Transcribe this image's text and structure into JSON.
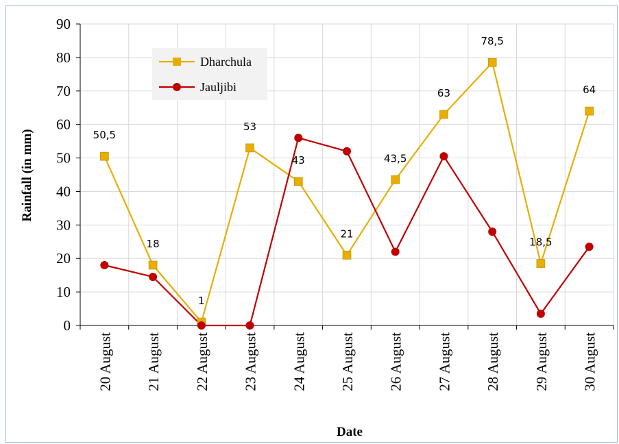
{
  "chart_data": {
    "type": "line",
    "categories": [
      "20 August",
      "21 August",
      "22 August",
      "23 August",
      "24 August",
      "25 August",
      "26 August",
      "27 August",
      "28 August",
      "29 August",
      "30 August"
    ],
    "series": [
      {
        "name": "Dharchula",
        "values": [
          50.5,
          18,
          1,
          53,
          43,
          21,
          43.5,
          63,
          78.5,
          18.5,
          64
        ],
        "labels": [
          "50,5",
          "18",
          "1",
          "53",
          "43",
          "21",
          "43,5",
          "63",
          "78,5",
          "18,5",
          "64"
        ],
        "color": "#e8ae00",
        "marker": "square"
      },
      {
        "name": "Jauljibi",
        "values": [
          18,
          14.5,
          0,
          0,
          56,
          52,
          22,
          50.5,
          28,
          3.5,
          23.5
        ],
        "color": "#c00000",
        "marker": "circle"
      }
    ],
    "xlabel": "Date",
    "ylabel": "Rainfall (in mm)",
    "ylim": [
      0,
      90
    ],
    "yticks": [
      "0",
      "10",
      "20",
      "30",
      "40",
      "50",
      "60",
      "70",
      "80",
      "90"
    ],
    "grid": true,
    "legend": "top-left"
  }
}
